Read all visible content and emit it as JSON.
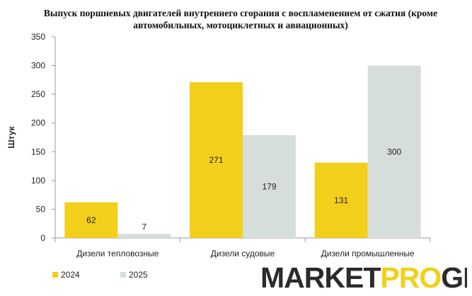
{
  "colors": {
    "series_2024": "#f2cf1b",
    "series_2025": "#d6dedb",
    "axis": "#9a9a9a",
    "text": "#222222",
    "logo_dark": "#2b2b2b",
    "logo_accent": "#f2cf1b"
  },
  "logo": {
    "part1": "MARKET",
    "part2": "PRO",
    "part3": "GROUP"
  },
  "chart_data": {
    "type": "bar",
    "title": "Выпуск поршневых двигателей внутреннего сгорания с воспламенением от сжатия (кроме автомобильных, мотоциклетных и авиационных)",
    "xlabel": "",
    "ylabel": "Штук",
    "ylim": [
      0,
      350
    ],
    "yticks": [
      0,
      50,
      100,
      150,
      200,
      250,
      300,
      350
    ],
    "grid": false,
    "legend": "bottom-left",
    "categories": [
      "Дизели тепловозные",
      "Дизели судовые",
      "Дизели промышленные"
    ],
    "series": [
      {
        "name": "2024",
        "values": [
          62,
          271,
          131
        ]
      },
      {
        "name": "2025",
        "values": [
          7,
          179,
          300
        ]
      }
    ]
  }
}
